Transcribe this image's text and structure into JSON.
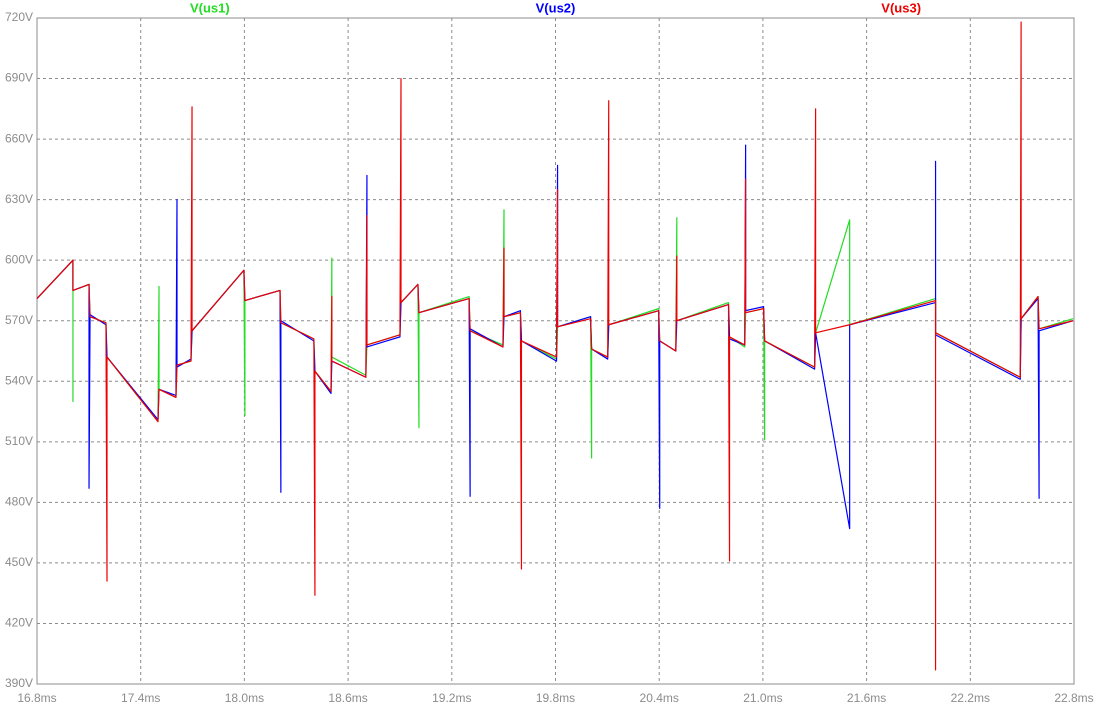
{
  "chart_data": {
    "type": "line",
    "grid": true,
    "xlim": [
      16.8,
      22.8
    ],
    "ylim": [
      390,
      720
    ],
    "xticks": [
      {
        "value": 16.8,
        "label": "16.8ms"
      },
      {
        "value": 17.4,
        "label": "17.4ms"
      },
      {
        "value": 18.0,
        "label": "18.0ms"
      },
      {
        "value": 18.6,
        "label": "18.6ms"
      },
      {
        "value": 19.2,
        "label": "19.2ms"
      },
      {
        "value": 19.8,
        "label": "19.8ms"
      },
      {
        "value": 20.4,
        "label": "20.4ms"
      },
      {
        "value": 21.0,
        "label": "21.0ms"
      },
      {
        "value": 21.6,
        "label": "21.6ms"
      },
      {
        "value": 22.2,
        "label": "22.2ms"
      },
      {
        "value": 22.8,
        "label": "22.8ms"
      }
    ],
    "yticks": [
      {
        "value": 390,
        "label": "390V"
      },
      {
        "value": 420,
        "label": "420V"
      },
      {
        "value": 450,
        "label": "450V"
      },
      {
        "value": 480,
        "label": "480V"
      },
      {
        "value": 510,
        "label": "510V"
      },
      {
        "value": 540,
        "label": "540V"
      },
      {
        "value": 570,
        "label": "570V"
      },
      {
        "value": 600,
        "label": "600V"
      },
      {
        "value": 630,
        "label": "630V"
      },
      {
        "value": 660,
        "label": "660V"
      },
      {
        "value": 690,
        "label": "690V"
      },
      {
        "value": 720,
        "label": "720V"
      }
    ],
    "series": [
      {
        "name": "V(us1)",
        "color": "#22dd22",
        "x": [
          16.8,
          17.008,
          17.008,
          17.008,
          17.101,
          17.107,
          17.199,
          17.205,
          17.5,
          17.506,
          17.506,
          17.604,
          17.61,
          17.691,
          17.697,
          17.997,
          18.003,
          18.003,
          18.206,
          18.211,
          18.402,
          18.408,
          18.501,
          18.506,
          18.506,
          18.703,
          18.709,
          18.9,
          18.906,
          19.004,
          19.01,
          19.01,
          19.3,
          19.306,
          19.496,
          19.502,
          19.502,
          19.597,
          19.603,
          19.806,
          19.812,
          20.003,
          20.009,
          20.009,
          20.102,
          20.108,
          20.397,
          20.403,
          20.496,
          20.502,
          20.502,
          20.801,
          20.807,
          20.895,
          20.9,
          21.004,
          21.01,
          21.01,
          21.299,
          21.305,
          21.502,
          21.502,
          21.999,
          21.999,
          22.489,
          22.494,
          22.592,
          22.598,
          22.795
        ],
        "values": [
          581,
          600,
          530,
          585,
          588,
          572,
          569,
          552,
          520,
          587,
          536,
          532,
          548,
          550,
          565,
          595,
          523,
          580,
          585,
          569,
          561,
          545,
          535,
          601,
          552,
          543,
          558,
          563,
          579,
          588,
          517,
          574,
          582,
          565,
          558,
          625,
          572,
          574,
          560,
          551,
          567,
          572,
          502,
          556,
          552,
          568,
          576,
          560,
          555,
          621,
          570,
          579,
          562,
          557,
          574,
          576,
          511,
          560,
          547,
          564,
          620,
          568,
          581,
          564,
          542,
          571,
          582,
          566,
          571
        ]
      },
      {
        "name": "V(us2)",
        "color": "#0000ff",
        "x": [
          16.8,
          17.008,
          17.008,
          17.101,
          17.101,
          17.107,
          17.199,
          17.205,
          17.5,
          17.506,
          17.604,
          17.61,
          17.61,
          17.691,
          17.697,
          17.997,
          18.003,
          18.206,
          18.211,
          18.211,
          18.402,
          18.408,
          18.501,
          18.506,
          18.703,
          18.709,
          18.709,
          18.9,
          18.906,
          19.004,
          19.01,
          19.3,
          19.306,
          19.306,
          19.496,
          19.502,
          19.597,
          19.603,
          19.806,
          19.812,
          19.812,
          20.003,
          20.009,
          20.102,
          20.108,
          20.397,
          20.403,
          20.403,
          20.496,
          20.502,
          20.801,
          20.807,
          20.895,
          20.9,
          20.9,
          21.004,
          21.01,
          21.299,
          21.305,
          21.502,
          21.502,
          21.999,
          21.999,
          21.999,
          22.489,
          22.494,
          22.592,
          22.598,
          22.598,
          22.795
        ],
        "values": [
          581,
          600,
          585,
          588,
          487,
          573,
          568,
          552,
          521,
          536,
          533,
          630,
          547,
          551,
          565,
          595,
          580,
          585,
          485,
          570,
          560,
          545,
          534,
          550,
          542,
          642,
          557,
          562,
          579,
          588,
          574,
          581,
          483,
          566,
          557,
          572,
          575,
          560,
          550,
          647,
          567,
          572,
          556,
          551,
          568,
          575,
          477,
          560,
          555,
          570,
          578,
          561,
          558,
          657,
          575,
          577,
          560,
          546,
          564,
          467,
          568,
          579,
          649,
          563,
          541,
          571,
          581,
          482,
          565,
          570
        ]
      },
      {
        "name": "V(us3)",
        "color": "#ee0000",
        "x": [
          16.8,
          17.008,
          17.008,
          17.101,
          17.107,
          17.199,
          17.205,
          17.205,
          17.5,
          17.506,
          17.604,
          17.61,
          17.691,
          17.697,
          17.697,
          17.997,
          18.003,
          18.206,
          18.211,
          18.402,
          18.408,
          18.408,
          18.501,
          18.506,
          18.506,
          18.703,
          18.709,
          18.709,
          18.9,
          18.906,
          18.906,
          19.004,
          19.01,
          19.3,
          19.306,
          19.496,
          19.502,
          19.502,
          19.597,
          19.603,
          19.603,
          19.806,
          19.812,
          19.812,
          20.003,
          20.009,
          20.102,
          20.108,
          20.108,
          20.397,
          20.403,
          20.496,
          20.502,
          20.502,
          20.801,
          20.807,
          20.807,
          20.895,
          20.9,
          20.9,
          21.004,
          21.01,
          21.299,
          21.305,
          21.305,
          21.502,
          21.999,
          21.999,
          21.999,
          22.489,
          22.494,
          22.494,
          22.592,
          22.598,
          22.795
        ],
        "values": [
          581,
          600,
          585,
          588,
          572,
          569,
          441,
          552,
          520,
          536,
          532,
          548,
          550,
          676,
          565,
          595,
          580,
          585,
          569,
          561,
          434,
          545,
          535,
          582,
          550,
          542,
          622,
          558,
          563,
          690,
          579,
          588,
          574,
          581,
          565,
          557,
          606,
          572,
          574,
          447,
          560,
          552,
          635,
          567,
          571,
          556,
          552,
          679,
          568,
          575,
          560,
          555,
          602,
          570,
          578,
          451,
          562,
          558,
          640,
          574,
          576,
          560,
          547,
          675,
          564,
          568,
          580,
          397,
          564,
          542,
          718,
          571,
          582,
          566,
          570
        ]
      }
    ]
  }
}
